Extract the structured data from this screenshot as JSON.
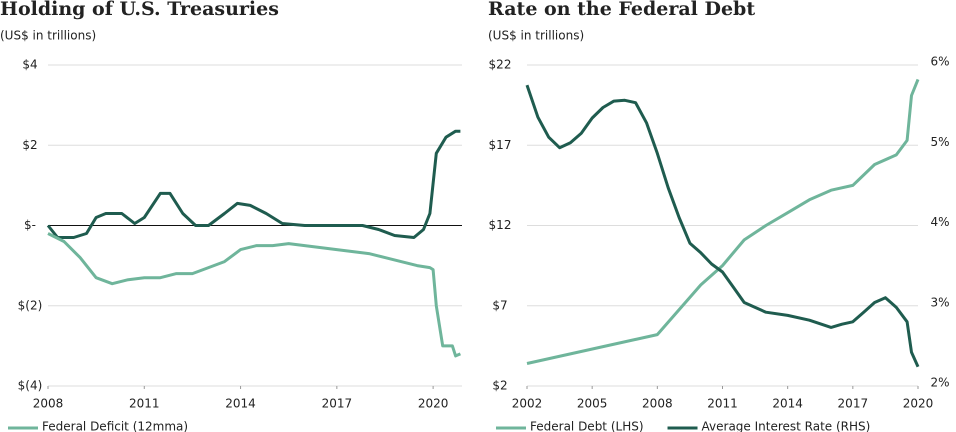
{
  "chart_data": [
    {
      "type": "line",
      "title": "Holding of U.S. Treasuries",
      "subtitle": "(US$ in trillions)",
      "xlim": [
        2008,
        2020.9
      ],
      "xticks": [
        2008,
        2011,
        2014,
        2017,
        2020
      ],
      "ylim": [
        -4,
        4
      ],
      "yticks": [
        {
          "value": 4,
          "label": "$4"
        },
        {
          "value": 2,
          "label": "$2"
        },
        {
          "value": 0,
          "label": "$-"
        },
        {
          "value": -2,
          "label": "$(2)"
        },
        {
          "value": -4,
          "label": "$(4)"
        }
      ],
      "grid": true,
      "series": [
        {
          "color": "#1f5c4f",
          "x": [
            2008,
            2008.3,
            2008.8,
            2009.2,
            2009.5,
            2009.8,
            2010.3,
            2010.7,
            2011.0,
            2011.5,
            2011.8,
            2012.2,
            2012.6,
            2013.0,
            2013.5,
            2013.9,
            2014.3,
            2014.8,
            2015.3,
            2016,
            2017,
            2017.8,
            2018.3,
            2018.8,
            2019.4,
            2019.7,
            2019.9,
            2020.1,
            2020.4,
            2020.7,
            2020.85
          ],
          "values": [
            0,
            -0.3,
            -0.3,
            -0.2,
            0.2,
            0.3,
            0.3,
            0.05,
            0.2,
            0.8,
            0.8,
            0.3,
            0,
            0,
            0.3,
            0.55,
            0.5,
            0.3,
            0.05,
            0,
            0,
            0,
            -0.1,
            -0.25,
            -0.3,
            -0.1,
            0.3,
            1.8,
            2.2,
            2.35,
            2.35
          ]
        },
        {
          "name": "Federal Deficit (12mma)",
          "color": "#6fb59b",
          "x": [
            2008,
            2008.5,
            2009,
            2009.5,
            2010,
            2010.5,
            2011,
            2011.5,
            2012,
            2012.5,
            2013,
            2013.5,
            2014,
            2014.5,
            2015,
            2015.5,
            2016,
            2016.5,
            2017,
            2017.5,
            2018,
            2018.5,
            2019,
            2019.5,
            2019.9,
            2020.0,
            2020.1,
            2020.3,
            2020.6,
            2020.7,
            2020.85
          ],
          "values": [
            -0.2,
            -0.4,
            -0.8,
            -1.3,
            -1.45,
            -1.35,
            -1.3,
            -1.3,
            -1.2,
            -1.2,
            -1.05,
            -0.9,
            -0.6,
            -0.5,
            -0.5,
            -0.45,
            -0.5,
            -0.55,
            -0.6,
            -0.65,
            -0.7,
            -0.8,
            -0.9,
            -1.0,
            -1.05,
            -1.1,
            -2.0,
            -3.0,
            -3.0,
            -3.25,
            -3.2
          ]
        }
      ]
    },
    {
      "type": "line",
      "title": "Rate on the Federal Debt",
      "subtitle": "(US$ in trillions)",
      "xlim": [
        2002,
        2020
      ],
      "xticks": [
        2002,
        2005,
        2008,
        2011,
        2014,
        2017,
        2020
      ],
      "ylim": [
        2,
        22
      ],
      "yticks": [
        {
          "value": 22,
          "label": "$22"
        },
        {
          "value": 17,
          "label": "$17"
        },
        {
          "value": 12,
          "label": "$12"
        },
        {
          "value": 7,
          "label": "$7"
        },
        {
          "value": 2,
          "label": "$2"
        }
      ],
      "y2lim": [
        2,
        6
      ],
      "y2ticks": [
        {
          "value": 6,
          "label": "6%"
        },
        {
          "value": 5,
          "label": "5%"
        },
        {
          "value": 4,
          "label": "4%"
        },
        {
          "value": 3,
          "label": "3%"
        },
        {
          "value": 2,
          "label": "2%"
        }
      ],
      "grid": true,
      "series": [
        {
          "name": "Federal Debt (LHS)",
          "color": "#6fb59b",
          "x": [
            2002,
            2008,
            2010,
            2011,
            2012,
            2013,
            2014,
            2015,
            2016,
            2017,
            2018,
            2019,
            2019.5,
            2019.7,
            2020
          ],
          "values": [
            3.4,
            5.2,
            8.3,
            9.5,
            11.1,
            12.0,
            12.8,
            13.6,
            14.2,
            14.5,
            15.8,
            16.4,
            17.3,
            20.1,
            21.1
          ]
        },
        {
          "name": "Average Interest Rate (RHS)",
          "color": "#1f5c4f",
          "axis": "y2",
          "x": [
            2002,
            2002.5,
            2003,
            2003.5,
            2004,
            2004.5,
            2005,
            2005.5,
            2006,
            2006.5,
            2007,
            2007.5,
            2008,
            2008.5,
            2009,
            2009.5,
            2010,
            2010.5,
            2011,
            2011.5,
            2012,
            2012.5,
            2013,
            2014,
            2015,
            2016,
            2016.5,
            2017,
            2017.5,
            2018,
            2018.5,
            2019,
            2019.5,
            2019.7,
            2020
          ],
          "values": [
            5.75,
            5.35,
            5.1,
            4.97,
            5.03,
            5.15,
            5.34,
            5.47,
            5.55,
            5.56,
            5.53,
            5.28,
            4.9,
            4.47,
            4.1,
            3.78,
            3.66,
            3.52,
            3.42,
            3.23,
            3.04,
            2.98,
            2.92,
            2.88,
            2.82,
            2.73,
            2.77,
            2.8,
            2.92,
            3.04,
            3.1,
            2.98,
            2.8,
            2.42,
            2.24
          ]
        }
      ]
    }
  ]
}
